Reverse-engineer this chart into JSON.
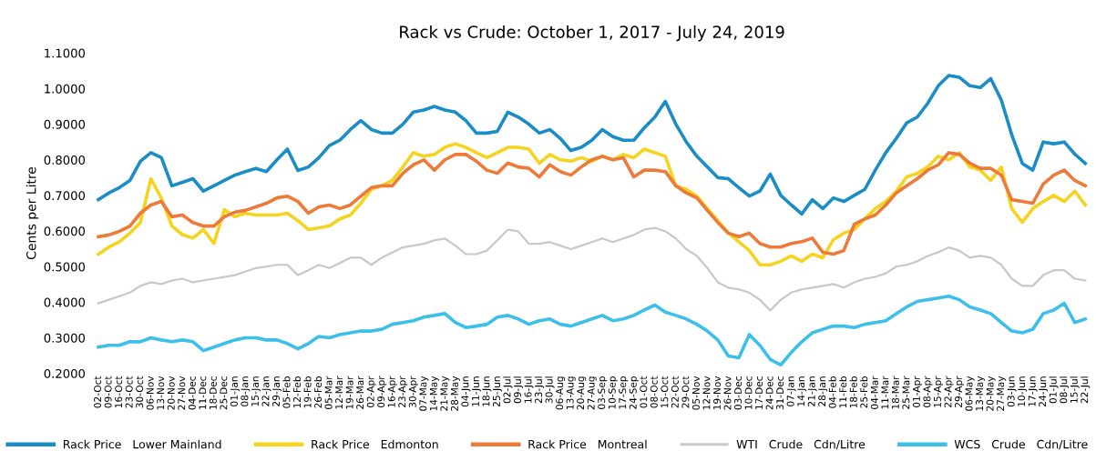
{
  "chart_data": {
    "type": "line",
    "title": "Rack vs Crude: October 1, 2017 - July 24, 2019",
    "ylabel": "Cents per Litre",
    "categories": [
      "02-Oct",
      "09-Oct",
      "16-Oct",
      "23-Oct",
      "30-Oct",
      "06-Nov",
      "13-Nov",
      "20-Nov",
      "27-Nov",
      "04-Dec",
      "11-Dec",
      "18-Dec",
      "25-Dec",
      "01-Jan",
      "08-Jan",
      "15-Jan",
      "22-Jan",
      "29-Jan",
      "05-Feb",
      "12-Feb",
      "19-Feb",
      "26-Feb",
      "05-Mar",
      "12-Mar",
      "19-Mar",
      "26-Mar",
      "02-Apr",
      "09-Apr",
      "16-Apr",
      "23-Apr",
      "30-Apr",
      "07-May",
      "14-May",
      "21-May",
      "28-May",
      "04-Jun",
      "11-Jun",
      "18-Jun",
      "25-Jun",
      "02-Jul",
      "09-Jul",
      "16-Jul",
      "23-Jul",
      "30-Jul",
      "06-Aug",
      "13-Aug",
      "20-Aug",
      "27-Aug",
      "03-Sep",
      "10-Sep",
      "17-Sep",
      "24-Sep",
      "01-Oct",
      "08-Oct",
      "15-Oct",
      "22-Oct",
      "29-Oct",
      "05-Nov",
      "12-Nov",
      "19-Nov",
      "26-Nov",
      "03-Dec",
      "10-Dec",
      "17-Dec",
      "24-Dec",
      "31-Dec",
      "07-Jan",
      "14-Jan",
      "21-Jan",
      "28-Jan",
      "04-Feb",
      "11-Feb",
      "18-Feb",
      "25-Feb",
      "04-Mar",
      "11-Mar",
      "18-Mar",
      "25-Mar",
      "01-Apr",
      "08-Apr",
      "15-Apr",
      "22-Apr",
      "29-Apr",
      "06-May",
      "13-May",
      "20-May",
      "27-May",
      "03-Jun",
      "10-Jun",
      "17-Jun",
      "24-Jun",
      "01-Jul",
      "08-Jul",
      "15-Jul",
      "22-Jul"
    ],
    "series": [
      {
        "name": "Rack Price   Lower Mainland",
        "color": "#1a8cc6",
        "values": [
          0.688,
          0.707,
          0.722,
          0.742,
          0.796,
          0.82,
          0.806,
          0.727,
          0.737,
          0.747,
          0.712,
          0.727,
          0.742,
          0.757,
          0.767,
          0.776,
          0.767,
          0.8,
          0.83,
          0.77,
          0.78,
          0.806,
          0.84,
          0.855,
          0.885,
          0.91,
          0.885,
          0.875,
          0.875,
          0.9,
          0.934,
          0.94,
          0.95,
          0.94,
          0.934,
          0.91,
          0.875,
          0.875,
          0.88,
          0.934,
          0.92,
          0.9,
          0.875,
          0.885,
          0.86,
          0.826,
          0.835,
          0.855,
          0.885,
          0.865,
          0.855,
          0.855,
          0.89,
          0.92,
          0.964,
          0.9,
          0.85,
          0.81,
          0.78,
          0.75,
          0.747,
          0.722,
          0.698,
          0.712,
          0.76,
          0.7,
          0.673,
          0.648,
          0.688,
          0.663,
          0.693,
          0.683,
          0.7,
          0.717,
          0.771,
          0.82,
          0.86,
          0.904,
          0.92,
          0.959,
          1.008,
          1.037,
          1.032,
          1.008,
          1.003,
          1.028,
          0.968,
          0.87,
          0.79,
          0.771,
          0.85,
          0.845,
          0.85,
          0.816,
          0.79
        ]
      },
      {
        "name": "Rack Price   Edmonton",
        "color": "#f5d31f",
        "values": [
          0.535,
          0.555,
          0.57,
          0.594,
          0.624,
          0.747,
          0.692,
          0.614,
          0.59,
          0.58,
          0.604,
          0.565,
          0.66,
          0.64,
          0.65,
          0.645,
          0.645,
          0.645,
          0.65,
          0.629,
          0.604,
          0.609,
          0.614,
          0.634,
          0.645,
          0.678,
          0.717,
          0.727,
          0.742,
          0.78,
          0.82,
          0.81,
          0.815,
          0.835,
          0.845,
          0.835,
          0.82,
          0.806,
          0.82,
          0.835,
          0.835,
          0.83,
          0.79,
          0.815,
          0.8,
          0.796,
          0.806,
          0.796,
          0.81,
          0.8,
          0.815,
          0.806,
          0.83,
          0.82,
          0.81,
          0.727,
          0.717,
          0.698,
          0.663,
          0.629,
          0.594,
          0.57,
          0.545,
          0.505,
          0.505,
          0.515,
          0.53,
          0.515,
          0.535,
          0.525,
          0.575,
          0.594,
          0.604,
          0.634,
          0.663,
          0.683,
          0.712,
          0.752,
          0.762,
          0.78,
          0.81,
          0.8,
          0.82,
          0.78,
          0.771,
          0.742,
          0.78,
          0.663,
          0.624,
          0.663,
          0.683,
          0.7,
          0.683,
          0.712,
          0.673
        ]
      },
      {
        "name": "Rack Price   Montreal",
        "color": "#ee7a3a",
        "values": [
          0.584,
          0.589,
          0.599,
          0.614,
          0.65,
          0.673,
          0.683,
          0.64,
          0.645,
          0.624,
          0.614,
          0.614,
          0.64,
          0.653,
          0.658,
          0.668,
          0.678,
          0.693,
          0.698,
          0.683,
          0.65,
          0.668,
          0.673,
          0.663,
          0.673,
          0.698,
          0.722,
          0.727,
          0.727,
          0.762,
          0.786,
          0.8,
          0.771,
          0.8,
          0.815,
          0.815,
          0.796,
          0.771,
          0.762,
          0.791,
          0.78,
          0.776,
          0.752,
          0.786,
          0.767,
          0.757,
          0.78,
          0.8,
          0.81,
          0.8,
          0.806,
          0.752,
          0.771,
          0.771,
          0.767,
          0.727,
          0.707,
          0.693,
          0.658,
          0.624,
          0.594,
          0.584,
          0.594,
          0.565,
          0.555,
          0.555,
          0.565,
          0.57,
          0.58,
          0.54,
          0.535,
          0.545,
          0.619,
          0.634,
          0.645,
          0.673,
          0.707,
          0.727,
          0.747,
          0.771,
          0.786,
          0.82,
          0.815,
          0.791,
          0.776,
          0.776,
          0.757,
          0.688,
          0.683,
          0.678,
          0.732,
          0.757,
          0.771,
          0.742,
          0.727
        ]
      },
      {
        "name": "WTI   Crude   Cdn/Litre",
        "color": "#c8c8c8",
        "values": [
          0.397,
          0.407,
          0.417,
          0.427,
          0.446,
          0.456,
          0.451,
          0.461,
          0.466,
          0.456,
          0.461,
          0.466,
          0.471,
          0.476,
          0.486,
          0.496,
          0.5,
          0.505,
          0.505,
          0.476,
          0.49,
          0.505,
          0.496,
          0.51,
          0.525,
          0.525,
          0.505,
          0.525,
          0.54,
          0.554,
          0.559,
          0.564,
          0.574,
          0.579,
          0.559,
          0.535,
          0.535,
          0.545,
          0.574,
          0.604,
          0.599,
          0.564,
          0.564,
          0.569,
          0.559,
          0.549,
          0.559,
          0.569,
          0.579,
          0.569,
          0.579,
          0.589,
          0.604,
          0.609,
          0.599,
          0.579,
          0.549,
          0.53,
          0.496,
          0.456,
          0.441,
          0.436,
          0.427,
          0.407,
          0.377,
          0.407,
          0.427,
          0.436,
          0.441,
          0.446,
          0.451,
          0.441,
          0.456,
          0.466,
          0.471,
          0.481,
          0.5,
          0.505,
          0.515,
          0.53,
          0.54,
          0.554,
          0.545,
          0.525,
          0.53,
          0.525,
          0.505,
          0.466,
          0.446,
          0.446,
          0.476,
          0.49,
          0.49,
          0.466,
          0.461
        ]
      },
      {
        "name": "WCS   Crude   Cdn/Litre",
        "color": "#3cbfe8",
        "values": [
          0.274,
          0.279,
          0.279,
          0.289,
          0.289,
          0.3,
          0.294,
          0.289,
          0.294,
          0.289,
          0.264,
          0.274,
          0.284,
          0.294,
          0.3,
          0.3,
          0.294,
          0.294,
          0.284,
          0.269,
          0.284,
          0.304,
          0.3,
          0.309,
          0.314,
          0.319,
          0.319,
          0.324,
          0.338,
          0.343,
          0.348,
          0.358,
          0.363,
          0.368,
          0.343,
          0.329,
          0.333,
          0.338,
          0.358,
          0.363,
          0.353,
          0.338,
          0.348,
          0.353,
          0.338,
          0.333,
          0.343,
          0.353,
          0.363,
          0.348,
          0.353,
          0.363,
          0.378,
          0.392,
          0.372,
          0.363,
          0.353,
          0.338,
          0.319,
          0.294,
          0.249,
          0.244,
          0.309,
          0.279,
          0.239,
          0.224,
          0.259,
          0.289,
          0.314,
          0.324,
          0.333,
          0.333,
          0.329,
          0.338,
          0.343,
          0.348,
          0.368,
          0.387,
          0.402,
          0.407,
          0.412,
          0.417,
          0.407,
          0.387,
          0.378,
          0.368,
          0.343,
          0.319,
          0.314,
          0.324,
          0.368,
          0.378,
          0.397,
          0.343,
          0.353
        ]
      }
    ],
    "ylim": [
      0.2,
      1.1
    ],
    "yticks": [
      {
        "value": 0.2,
        "label": "0.2000"
      },
      {
        "value": 0.3,
        "label": "0.3000"
      },
      {
        "value": 0.4,
        "label": "0.4000"
      },
      {
        "value": 0.5,
        "label": "0.5000"
      },
      {
        "value": 0.6,
        "label": "0.6000"
      },
      {
        "value": 0.7,
        "label": "0.7000"
      },
      {
        "value": 0.8,
        "label": "0.8000"
      },
      {
        "value": 0.9,
        "label": "0.9000"
      },
      {
        "value": 1.0,
        "label": "1.0000"
      },
      {
        "value": 1.1,
        "label": "1.1000"
      }
    ],
    "grid": false,
    "legend": "bottom",
    "marker": "none",
    "line_style": "solid"
  }
}
